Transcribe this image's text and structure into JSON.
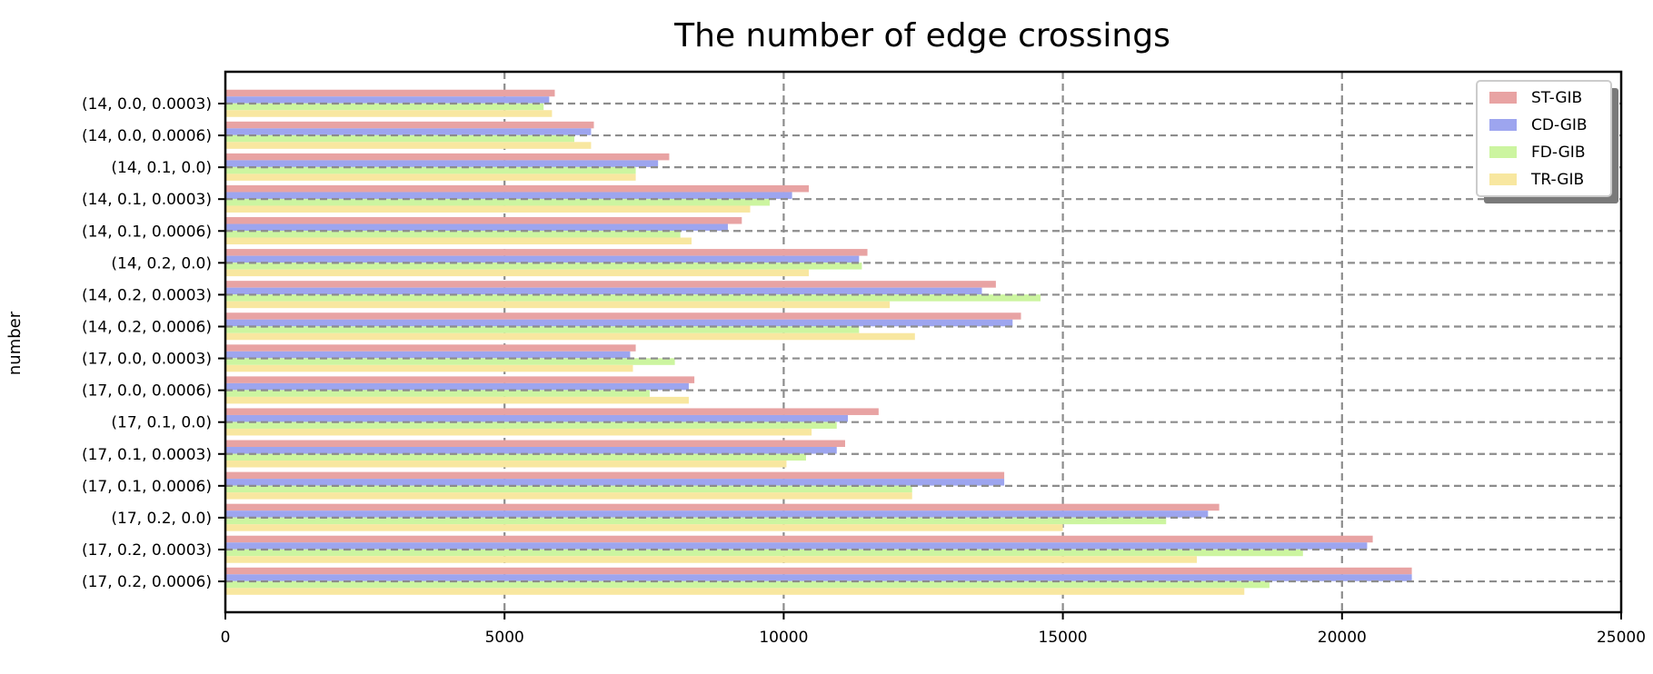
{
  "chart_data": {
    "type": "bar",
    "orientation": "horizontal",
    "title": "The number of edge crossings",
    "xlabel": "",
    "ylabel": "number",
    "xlim": [
      0,
      25000
    ],
    "xticks": [
      "0",
      "5000",
      "10000",
      "15000",
      "20000",
      "25000"
    ],
    "categories": [
      "(14, 0.0, 0.0003)",
      "(14, 0.0, 0.0006)",
      "(14, 0.1, 0.0)",
      "(14, 0.1, 0.0003)",
      "(14, 0.1, 0.0006)",
      "(14, 0.2, 0.0)",
      "(14, 0.2, 0.0003)",
      "(14, 0.2, 0.0006)",
      "(17, 0.0, 0.0003)",
      "(17, 0.0, 0.0006)",
      "(17, 0.1, 0.0)",
      "(17, 0.1, 0.0003)",
      "(17, 0.1, 0.0006)",
      "(17, 0.2, 0.0)",
      "(17, 0.2, 0.0003)",
      "(17, 0.2, 0.0006)"
    ],
    "series": [
      {
        "name": "ST-GIB",
        "color": "#e8a3a3",
        "values": [
          5900,
          6600,
          7950,
          10450,
          9250,
          11500,
          13800,
          14250,
          7350,
          8400,
          11700,
          11100,
          13950,
          17800,
          20550,
          21250
        ]
      },
      {
        "name": "CD-GIB",
        "color": "#9da5ef",
        "values": [
          5800,
          6550,
          7750,
          10150,
          9000,
          11350,
          13550,
          14100,
          7250,
          8300,
          11150,
          10950,
          13950,
          17600,
          20450,
          21250
        ]
      },
      {
        "name": "FD-GIB",
        "color": "#ccf5a0",
        "values": [
          5700,
          6250,
          7350,
          9750,
          8150,
          11400,
          14600,
          11350,
          8050,
          7600,
          10950,
          10400,
          12300,
          16850,
          19300,
          18700
        ]
      },
      {
        "name": "TR-GIB",
        "color": "#f8e7a0",
        "values": [
          5850,
          6550,
          7350,
          9400,
          8350,
          10450,
          11900,
          12350,
          7300,
          8300,
          10500,
          10050,
          12300,
          15000,
          17400,
          18250
        ]
      }
    ],
    "grid": true,
    "legend_position": "top-right"
  }
}
